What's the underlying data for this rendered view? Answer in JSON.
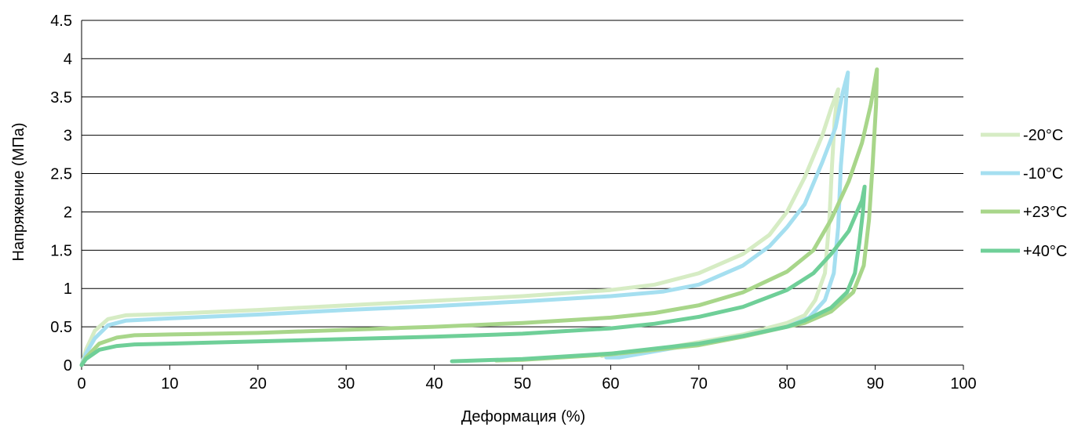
{
  "chart_data": {
    "type": "line",
    "title": "",
    "xlabel": "Деформация (%)",
    "ylabel": "Напряжение (МПа)",
    "xlim": [
      0,
      100
    ],
    "ylim": [
      0,
      4.5
    ],
    "xticks": [
      0,
      10,
      20,
      30,
      40,
      50,
      60,
      70,
      80,
      90,
      100
    ],
    "yticks": [
      0,
      0.5,
      1,
      1.5,
      2,
      2.5,
      3,
      3.5,
      4,
      4.5
    ],
    "xtick_labels": [
      "0",
      "10",
      "20",
      "30",
      "40",
      "50",
      "60",
      "70",
      "80",
      "90",
      "100"
    ],
    "ytick_labels": [
      "0",
      "0.5",
      "1",
      "1.5",
      "2",
      "2.5",
      "3",
      "3.5",
      "4",
      "4.5"
    ],
    "grid": "horizontal",
    "legend_position": "right",
    "series": [
      {
        "name": "-20°C",
        "color": "#d6ecc4",
        "points": [
          [
            0,
            0
          ],
          [
            0.5,
            0.2
          ],
          [
            1.5,
            0.45
          ],
          [
            3,
            0.6
          ],
          [
            5,
            0.65
          ],
          [
            10,
            0.67
          ],
          [
            20,
            0.72
          ],
          [
            30,
            0.78
          ],
          [
            40,
            0.84
          ],
          [
            50,
            0.9
          ],
          [
            60,
            0.98
          ],
          [
            65,
            1.05
          ],
          [
            70,
            1.2
          ],
          [
            75,
            1.45
          ],
          [
            78,
            1.7
          ],
          [
            80,
            2.0
          ],
          [
            82,
            2.45
          ],
          [
            84,
            3.0
          ],
          [
            85,
            3.35
          ],
          [
            85.8,
            3.6
          ],
          [
            85.4,
            3.2
          ],
          [
            85.1,
            2.6
          ],
          [
            84.8,
            1.9
          ],
          [
            84.3,
            1.2
          ],
          [
            83.2,
            0.85
          ],
          [
            82,
            0.65
          ],
          [
            80,
            0.55
          ],
          [
            75,
            0.4
          ],
          [
            70,
            0.3
          ],
          [
            65,
            0.2
          ],
          [
            60,
            0.15
          ],
          [
            59,
            0.12
          ]
        ]
      },
      {
        "name": "-10°C",
        "color": "#a5dff0",
        "points": [
          [
            0,
            0
          ],
          [
            0.5,
            0.15
          ],
          [
            1.5,
            0.35
          ],
          [
            3,
            0.52
          ],
          [
            5,
            0.58
          ],
          [
            10,
            0.61
          ],
          [
            20,
            0.66
          ],
          [
            30,
            0.72
          ],
          [
            40,
            0.77
          ],
          [
            50,
            0.83
          ],
          [
            60,
            0.9
          ],
          [
            66,
            0.96
          ],
          [
            70,
            1.05
          ],
          [
            75,
            1.3
          ],
          [
            78,
            1.55
          ],
          [
            80,
            1.8
          ],
          [
            82,
            2.1
          ],
          [
            84,
            2.65
          ],
          [
            85.5,
            3.1
          ],
          [
            86.3,
            3.55
          ],
          [
            86.9,
            3.82
          ],
          [
            86.6,
            3.3
          ],
          [
            86.1,
            2.6
          ],
          [
            85.8,
            1.8
          ],
          [
            85.3,
            1.2
          ],
          [
            84.3,
            0.85
          ],
          [
            82.5,
            0.62
          ],
          [
            80,
            0.5
          ],
          [
            75,
            0.38
          ],
          [
            70,
            0.28
          ],
          [
            65,
            0.18
          ],
          [
            61,
            0.1
          ],
          [
            59.5,
            0.1
          ]
        ]
      },
      {
        "name": "+23°C",
        "color": "#a8d68a",
        "points": [
          [
            0,
            0
          ],
          [
            0.5,
            0.1
          ],
          [
            2,
            0.28
          ],
          [
            4,
            0.36
          ],
          [
            6,
            0.39
          ],
          [
            10,
            0.4
          ],
          [
            20,
            0.42
          ],
          [
            30,
            0.46
          ],
          [
            40,
            0.5
          ],
          [
            50,
            0.55
          ],
          [
            60,
            0.62
          ],
          [
            65,
            0.68
          ],
          [
            70,
            0.78
          ],
          [
            75,
            0.95
          ],
          [
            80,
            1.22
          ],
          [
            83,
            1.5
          ],
          [
            85,
            1.9
          ],
          [
            87,
            2.4
          ],
          [
            88.5,
            2.9
          ],
          [
            89.5,
            3.4
          ],
          [
            90.2,
            3.86
          ],
          [
            90.1,
            3.4
          ],
          [
            89.7,
            2.6
          ],
          [
            89.3,
            1.9
          ],
          [
            88.7,
            1.3
          ],
          [
            87.5,
            0.95
          ],
          [
            85,
            0.7
          ],
          [
            82,
            0.55
          ],
          [
            80,
            0.5
          ],
          [
            75,
            0.37
          ],
          [
            70,
            0.26
          ],
          [
            60,
            0.14
          ],
          [
            50,
            0.07
          ],
          [
            47,
            0.06
          ]
        ]
      },
      {
        "name": "+40°C",
        "color": "#6fcf98",
        "points": [
          [
            0,
            0
          ],
          [
            0.5,
            0.08
          ],
          [
            2,
            0.2
          ],
          [
            4,
            0.25
          ],
          [
            6,
            0.27
          ],
          [
            10,
            0.28
          ],
          [
            20,
            0.31
          ],
          [
            30,
            0.34
          ],
          [
            40,
            0.37
          ],
          [
            50,
            0.41
          ],
          [
            60,
            0.48
          ],
          [
            65,
            0.54
          ],
          [
            70,
            0.63
          ],
          [
            75,
            0.76
          ],
          [
            80,
            0.98
          ],
          [
            83,
            1.2
          ],
          [
            85,
            1.45
          ],
          [
            87,
            1.75
          ],
          [
            88.5,
            2.15
          ],
          [
            88.8,
            2.33
          ],
          [
            88.6,
            2.0
          ],
          [
            88.2,
            1.6
          ],
          [
            87.7,
            1.2
          ],
          [
            86.8,
            0.95
          ],
          [
            85,
            0.75
          ],
          [
            82,
            0.58
          ],
          [
            80,
            0.5
          ],
          [
            75,
            0.38
          ],
          [
            70,
            0.28
          ],
          [
            60,
            0.15
          ],
          [
            50,
            0.08
          ],
          [
            42,
            0.05
          ]
        ]
      }
    ]
  }
}
